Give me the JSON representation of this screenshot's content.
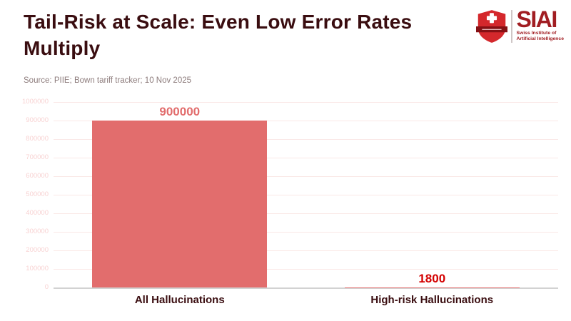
{
  "header": {
    "title": "Tail-Risk at Scale: Even Low Error Rates Multiply",
    "source": "Source: PIIE; Bown tariff tracker; 10 Nov 2025"
  },
  "logo": {
    "abbr": "SIAI",
    "tagline_line1": "Swiss Institute of",
    "tagline_line2": "Artificial Intelligence"
  },
  "colors": {
    "title-color": "#3a0d10",
    "source-color": "#8d7c7c",
    "brand-color": "#a11d22",
    "shield-red": "#d4282c",
    "shield-band": "#851014"
  },
  "chart_data": {
    "type": "bar",
    "categories": [
      "All Hallucinations",
      "High-risk Hallucinations"
    ],
    "values": [
      900000,
      1800
    ],
    "value_labels": [
      "900000",
      "1800"
    ],
    "value_label_colors": [
      "#e26d6d",
      "#d40000"
    ],
    "bar_color": "#e26d6d",
    "category_label_color": "#3a0d10",
    "title": "Tail-Risk at Scale: Even Low Error Rates Multiply",
    "xlabel": "",
    "ylabel": "",
    "ylim": [
      0,
      1000000
    ],
    "ytick_step": 100000,
    "ytick_label_color": "#f8d2d2",
    "grid": true,
    "gridline_color": "#fae8e6",
    "zero_line_color": "#d2d2d2",
    "legend": false
  }
}
